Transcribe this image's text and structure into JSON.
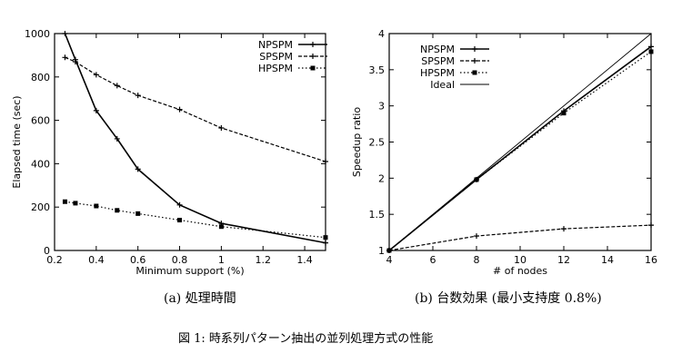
{
  "chart_data": [
    {
      "type": "line",
      "xlabel": "Minimum support (%)",
      "ylabel": "Elapsed time (sec)",
      "xlim": [
        0.2,
        1.5
      ],
      "ylim": [
        0,
        1000
      ],
      "xticks": [
        "0.2",
        "0.4",
        "0.6",
        "0.8",
        "1",
        "1.2",
        "1.4"
      ],
      "yticks": [
        "0",
        "200",
        "400",
        "600",
        "800",
        "1000"
      ],
      "legend_position": "top-right",
      "grid": false,
      "series": [
        {
          "name": "NPSPM",
          "style": "solid",
          "marker": "plus",
          "x": [
            0.25,
            0.3,
            0.4,
            0.5,
            0.6,
            0.8,
            1.0,
            1.5
          ],
          "y": [
            1000,
            880,
            645,
            515,
            375,
            210,
            125,
            35
          ]
        },
        {
          "name": "SPSPM",
          "style": "dashed",
          "marker": "plus",
          "x": [
            0.25,
            0.3,
            0.4,
            0.5,
            0.6,
            0.8,
            1.0,
            1.5
          ],
          "y": [
            890,
            870,
            810,
            760,
            715,
            650,
            565,
            410
          ]
        },
        {
          "name": "HPSPM",
          "style": "dotted",
          "marker": "square",
          "x": [
            0.25,
            0.3,
            0.4,
            0.5,
            0.6,
            0.8,
            1.0,
            1.5
          ],
          "y": [
            225,
            218,
            205,
            185,
            170,
            140,
            110,
            60
          ]
        }
      ]
    },
    {
      "type": "line",
      "xlabel": "# of nodes",
      "ylabel": "Speedup ratio",
      "xlim": [
        4,
        16
      ],
      "ylim": [
        1,
        4
      ],
      "xticks": [
        "4",
        "6",
        "8",
        "10",
        "12",
        "14",
        "16"
      ],
      "yticks": [
        "1",
        "1.5",
        "2",
        "2.5",
        "3",
        "3.5",
        "4"
      ],
      "legend_position": "top-left",
      "grid": false,
      "series": [
        {
          "name": "NPSPM",
          "style": "solid",
          "marker": "plus",
          "x": [
            4,
            8,
            12,
            16
          ],
          "y": [
            1,
            1.98,
            2.93,
            3.82
          ]
        },
        {
          "name": "SPSPM",
          "style": "dashed",
          "marker": "plus",
          "x": [
            4,
            8,
            12,
            16
          ],
          "y": [
            1,
            1.2,
            1.3,
            1.35
          ]
        },
        {
          "name": "HPSPM",
          "style": "dotted",
          "marker": "square",
          "x": [
            4,
            8,
            12,
            16
          ],
          "y": [
            1,
            1.98,
            2.9,
            3.75
          ]
        },
        {
          "name": "Ideal",
          "style": "solid-thin",
          "marker": "none",
          "x": [
            4,
            16
          ],
          "y": [
            1,
            4
          ]
        }
      ]
    }
  ],
  "captions": {
    "a": "(a) 処理時間",
    "b": "(b) 台数効果 (最小支持度 0.8%)",
    "figure": "図 1: 時系列パターン抽出の並列処理方式の性能"
  }
}
